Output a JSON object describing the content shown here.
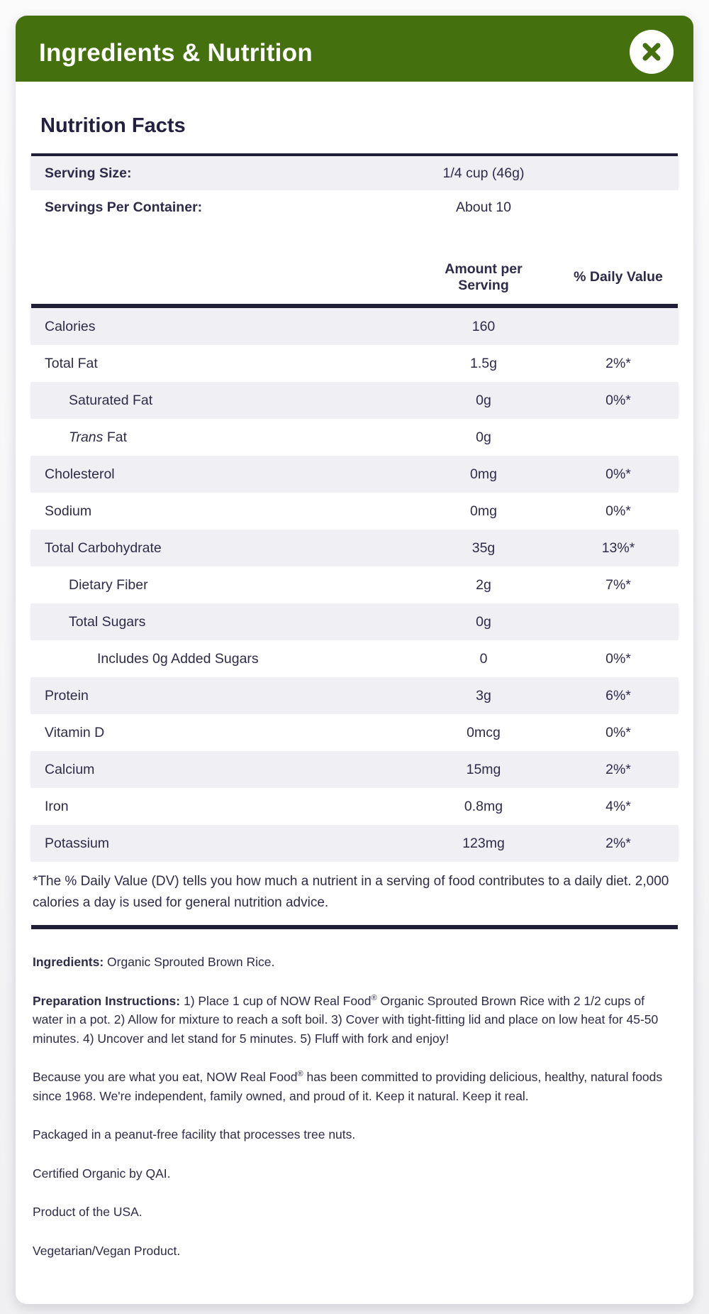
{
  "header": {
    "title": "Ingredients & Nutrition"
  },
  "nutrition": {
    "title": "Nutrition Facts",
    "serving_rows": [
      {
        "label": "Serving Size:",
        "value": "1/4 cup (46g)"
      },
      {
        "label": "Servings Per Container:",
        "value": "About 10"
      }
    ],
    "column_headers": {
      "amount": "Amount per Serving",
      "dv": "% Daily Value"
    },
    "rows": [
      {
        "label": "Calories",
        "amount": "160",
        "dv": "",
        "indent": 0
      },
      {
        "label": "Total Fat",
        "amount": "1.5g",
        "dv": "2%*",
        "indent": 0
      },
      {
        "label": "Saturated Fat",
        "amount": "0g",
        "dv": "0%*",
        "indent": 1
      },
      {
        "label_italic": "Trans",
        "label": " Fat",
        "amount": "0g",
        "dv": "",
        "indent": 1
      },
      {
        "label": "Cholesterol",
        "amount": "0mg",
        "dv": "0%*",
        "indent": 0
      },
      {
        "label": "Sodium",
        "amount": "0mg",
        "dv": "0%*",
        "indent": 0
      },
      {
        "label": "Total Carbohydrate",
        "amount": "35g",
        "dv": "13%*",
        "indent": 0
      },
      {
        "label": "Dietary Fiber",
        "amount": "2g",
        "dv": "7%*",
        "indent": 1
      },
      {
        "label": "Total Sugars",
        "amount": "0g",
        "dv": "",
        "indent": 1
      },
      {
        "label": "Includes 0g Added Sugars",
        "amount": "0",
        "dv": "0%*",
        "indent": 2
      },
      {
        "label": "Protein",
        "amount": "3g",
        "dv": "6%*",
        "indent": 0
      },
      {
        "label": "Vitamin D",
        "amount": "0mcg",
        "dv": "0%*",
        "indent": 0
      },
      {
        "label": "Calcium",
        "amount": "15mg",
        "dv": "2%*",
        "indent": 0
      },
      {
        "label": "Iron",
        "amount": "0.8mg",
        "dv": "4%*",
        "indent": 0
      },
      {
        "label": "Potassium",
        "amount": "123mg",
        "dv": "2%*",
        "indent": 0
      }
    ],
    "footnote": "*The % Daily Value (DV) tells you how much a nutrient in a serving of food contributes to a daily diet. 2,000 calories a day is used for general nutrition advice."
  },
  "info_paragraphs": [
    {
      "segments": [
        {
          "b": true,
          "t": "Ingredients:"
        },
        {
          "t": " Organic Sprouted Brown Rice."
        }
      ]
    },
    {
      "segments": [
        {
          "b": true,
          "t": "Preparation Instructions:"
        },
        {
          "t": " 1) Place 1 cup of NOW Real Food"
        },
        {
          "sup": true,
          "t": "®"
        },
        {
          "t": " Organic Sprouted Brown Rice with 2 1/2 cups of water in a pot. 2) Allow for mixture to reach a soft boil. 3) Cover with tight-fitting lid and place on low heat for 45-50 minutes. 4) Uncover and let stand for 5 minutes. 5) Fluff with fork and enjoy!"
        }
      ]
    },
    {
      "segments": [
        {
          "t": "Because you are what you eat, NOW Real Food"
        },
        {
          "sup": true,
          "t": "®"
        },
        {
          "t": " has been committed to providing delicious, healthy, natural foods since 1968. We're independent, family owned, and proud of it. Keep it natural. Keep it real."
        }
      ]
    },
    {
      "segments": [
        {
          "t": "Packaged in a peanut-free facility that processes tree nuts."
        }
      ]
    },
    {
      "segments": [
        {
          "t": "Certified Organic by QAI."
        }
      ]
    },
    {
      "segments": [
        {
          "t": "Product of the USA."
        }
      ]
    },
    {
      "segments": [
        {
          "t": "Vegetarian/Vegan Product."
        }
      ]
    }
  ],
  "colors": {
    "header_green": "#44700E",
    "text_navy": "#2E2B48",
    "row_shade": "#F0F0F4",
    "rule_dark": "#211E38"
  }
}
